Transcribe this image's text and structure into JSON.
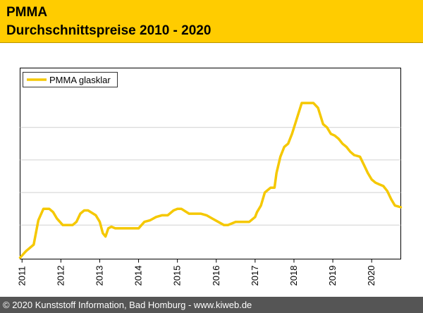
{
  "header": {
    "title": "PMMA",
    "subtitle": "Durchschnittspreise 2010 - 2020"
  },
  "footer": {
    "copyright": "© 2020 Kunststoff Information, Bad Homburg - www.kiweb.de"
  },
  "colors": {
    "header_bg": "#ffcc00",
    "line": "#f5c800",
    "footer_bg": "#555555"
  },
  "chart_data": {
    "type": "line",
    "title": "",
    "xlabel": "",
    "ylabel": "",
    "x_ticks": [
      "2011",
      "2012",
      "2013",
      "2014",
      "2015",
      "2016",
      "2017",
      "2018",
      "2019",
      "2020"
    ],
    "xlim": [
      2010.95,
      2020.75
    ],
    "ylim": [
      0,
      100
    ],
    "y_gridlines": [
      20,
      40,
      60,
      80
    ],
    "legend": {
      "position": "top-left",
      "entries": [
        "PMMA glasklar"
      ]
    },
    "series": [
      {
        "name": "PMMA glasklar",
        "x": [
          2010.95,
          2011.1,
          2011.3,
          2011.42,
          2011.55,
          2011.7,
          2011.8,
          2011.9,
          2012.05,
          2012.3,
          2012.4,
          2012.5,
          2012.6,
          2012.7,
          2012.9,
          2013.0,
          2013.08,
          2013.15,
          2013.22,
          2013.3,
          2013.4,
          2013.6,
          2013.8,
          2014.0,
          2014.15,
          2014.3,
          2014.45,
          2014.6,
          2014.75,
          2014.9,
          2015.0,
          2015.1,
          2015.3,
          2015.5,
          2015.6,
          2015.75,
          2015.9,
          2016.05,
          2016.2,
          2016.3,
          2016.5,
          2016.7,
          2016.85,
          2017.0,
          2017.05,
          2017.15,
          2017.25,
          2017.4,
          2017.5,
          2017.55,
          2017.65,
          2017.75,
          2017.85,
          2017.95,
          2018.2,
          2018.5,
          2018.62,
          2018.75,
          2018.85,
          2018.95,
          2019.05,
          2019.15,
          2019.25,
          2019.35,
          2019.45,
          2019.55,
          2019.7,
          2019.8,
          2019.9,
          2020.0,
          2020.1,
          2020.2,
          2020.3,
          2020.4,
          2020.5,
          2020.6,
          2020.75
        ],
        "values": [
          0,
          4,
          8,
          23,
          30,
          30,
          28,
          24,
          20,
          20,
          22,
          27,
          29,
          29,
          26,
          22,
          15,
          13,
          18,
          19,
          18,
          18,
          18,
          18,
          22,
          23,
          25,
          26,
          26,
          29,
          30,
          30,
          27,
          27,
          27,
          26,
          24,
          22,
          20,
          20,
          22,
          22,
          22,
          25,
          28,
          32,
          40,
          43,
          43,
          52,
          62,
          68,
          70,
          76,
          95,
          95,
          92,
          82,
          80,
          76,
          75,
          73,
          70,
          68,
          65,
          63,
          62,
          57,
          52,
          48,
          46,
          45,
          44,
          41,
          36,
          32,
          31
        ]
      }
    ]
  }
}
